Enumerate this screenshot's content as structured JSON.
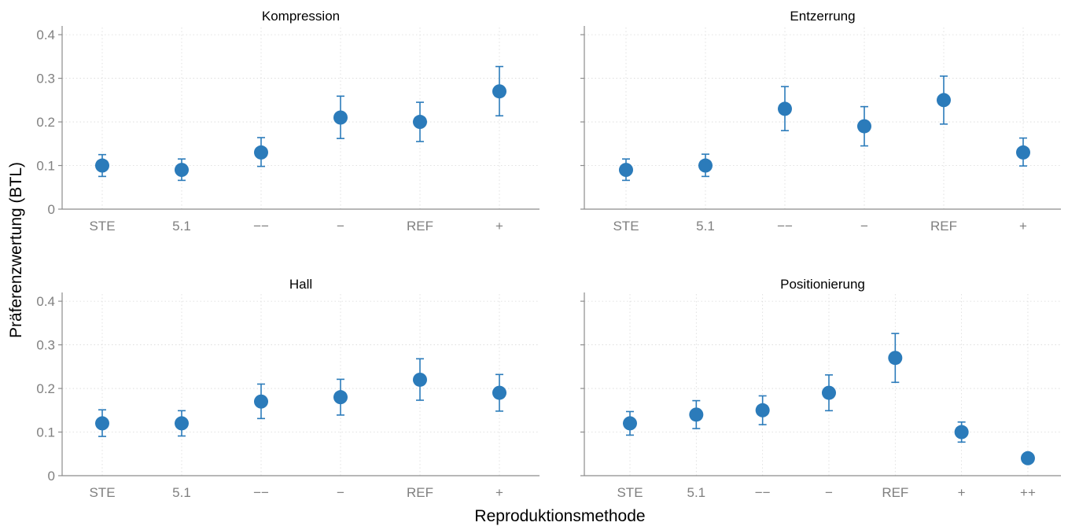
{
  "chart_data": {
    "type": "scatter",
    "xlabel": "Reproduktionsmethode",
    "ylabel": "Präferenzwertung (BTL)",
    "ylim": [
      0,
      0.42
    ],
    "yticks": [
      0,
      0.1,
      0.2,
      0.3,
      0.4
    ],
    "ytick_labels": [
      "0",
      "0.1",
      "0.2",
      "0.3",
      "0.4"
    ],
    "grid": true,
    "marker_color": "#2b7bba",
    "errorbar_color": "#2b7bba",
    "panels": [
      {
        "title": "Kompression",
        "categories": [
          "STE",
          "5.1",
          "−−",
          "−",
          "REF",
          "+"
        ],
        "values": [
          0.1,
          0.09,
          0.13,
          0.21,
          0.2,
          0.27
        ],
        "lower": [
          0.075,
          0.066,
          0.098,
          0.162,
          0.155,
          0.214
        ],
        "upper": [
          0.125,
          0.115,
          0.164,
          0.259,
          0.245,
          0.327
        ]
      },
      {
        "title": "Entzerrung",
        "categories": [
          "STE",
          "5.1",
          "−−",
          "−",
          "REF",
          "+"
        ],
        "values": [
          0.09,
          0.1,
          0.23,
          0.19,
          0.25,
          0.13
        ],
        "lower": [
          0.066,
          0.075,
          0.18,
          0.145,
          0.195,
          0.099
        ],
        "upper": [
          0.115,
          0.126,
          0.281,
          0.235,
          0.305,
          0.163
        ]
      },
      {
        "title": "Hall",
        "categories": [
          "STE",
          "5.1",
          "−−",
          "−",
          "REF",
          "+"
        ],
        "values": [
          0.12,
          0.12,
          0.17,
          0.18,
          0.22,
          0.19
        ],
        "lower": [
          0.09,
          0.091,
          0.131,
          0.139,
          0.173,
          0.148
        ],
        "upper": [
          0.151,
          0.149,
          0.21,
          0.221,
          0.268,
          0.232
        ]
      },
      {
        "title": "Positionierung",
        "categories": [
          "STE",
          "5.1",
          "−−",
          "−",
          "REF",
          "+",
          "++"
        ],
        "values": [
          0.12,
          0.14,
          0.15,
          0.19,
          0.27,
          0.1,
          0.04
        ],
        "lower": [
          0.093,
          0.108,
          0.117,
          0.149,
          0.214,
          0.077,
          0.04
        ],
        "upper": [
          0.147,
          0.172,
          0.183,
          0.231,
          0.326,
          0.123,
          0.04
        ]
      }
    ]
  }
}
